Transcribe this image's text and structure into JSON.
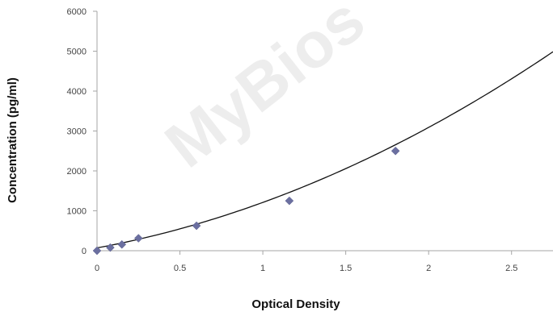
{
  "watermark": "MyBios",
  "chart_data": {
    "type": "scatter",
    "xlabel": "Optical Density",
    "ylabel": "Concentration (pg/ml)",
    "xlim": [
      0,
      2.75
    ],
    "ylim": [
      0,
      6000
    ],
    "x_ticks": [
      0,
      0.5,
      1,
      1.5,
      2,
      2.5
    ],
    "x_tick_labels": [
      "0",
      "0.5",
      "1",
      "1.5",
      "2",
      "2.5"
    ],
    "y_ticks": [
      0,
      1000,
      2000,
      3000,
      4000,
      5000,
      6000
    ],
    "y_tick_labels": [
      "0",
      "1000",
      "2000",
      "3000",
      "4000",
      "5000",
      "6000"
    ],
    "grid": false,
    "marker_color": "#6b6fa0",
    "curve_color": "#111111",
    "series": [
      {
        "points": [
          {
            "x": 0.0,
            "y": 0
          },
          {
            "x": 0.08,
            "y": 78
          },
          {
            "x": 0.15,
            "y": 156
          },
          {
            "x": 0.25,
            "y": 312
          },
          {
            "x": 0.6,
            "y": 625
          },
          {
            "x": 1.16,
            "y": 1250
          },
          {
            "x": 1.8,
            "y": 2500
          }
        ],
        "trendline": {
          "type": "polynomial",
          "coefficients": [
            70,
            770,
            370
          ],
          "x_range": [
            0,
            2.75
          ]
        }
      }
    ]
  }
}
